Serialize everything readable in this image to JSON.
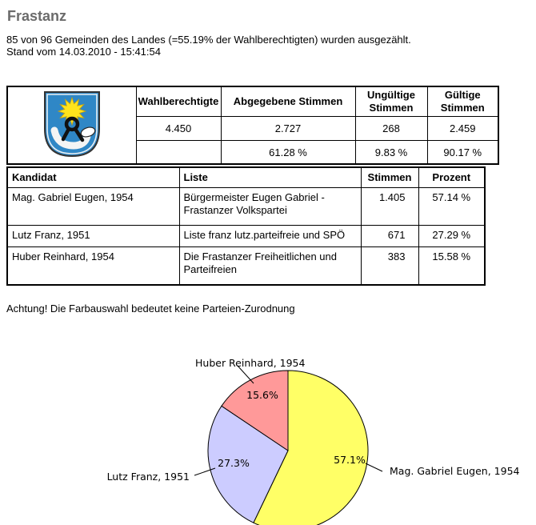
{
  "page": {
    "title": "Frastanz",
    "intro_line1": "85 von 96 Gemeinden des Landes (=55.19% der Wahlberechtigten) wurden ausgezählt.",
    "intro_line2": "Stand vom 14.03.2010 - 15:41:54",
    "note": "Achtung! Die Farbauswahl bedeutet keine Parteien-Zurodnung"
  },
  "summary_table": {
    "coat_of_arms": "frastanz-municipal-coat-of-arms",
    "headers": [
      "Wahlberechtigte",
      "Abgegebene Stimmen",
      "Ungültige Stimmen",
      "Gültige Stimmen"
    ],
    "values": [
      "4.450",
      "2.727",
      "268",
      "2.459"
    ],
    "percentages": [
      "",
      "61.28 %",
      "9.83 %",
      "90.17 %"
    ]
  },
  "candidate_table": {
    "headers": [
      "Kandidat",
      "Liste",
      "Stimmen",
      "Prozent"
    ],
    "rows": [
      {
        "kandidat": "Mag. Gabriel Eugen, 1954",
        "liste": "Bürgermeister Eugen Gabriel - Frastanzer Volkspartei",
        "stimmen": "1.405",
        "prozent": "57.14 %"
      },
      {
        "kandidat": "Lutz Franz, 1951",
        "liste": "Liste franz lutz.parteifreie und SPÖ",
        "stimmen": "671",
        "prozent": "27.29 %"
      },
      {
        "kandidat": "Huber Reinhard, 1954",
        "liste": "Die Frastanzer Freiheitlichen und Parteifreien",
        "stimmen": "383",
        "prozent": "15.58 %"
      }
    ]
  },
  "chart_data": {
    "type": "pie",
    "title": "",
    "start_angle_deg": 0,
    "direction": "clockwise",
    "outline_color": "#000000",
    "legend_position": "callout-labels",
    "slices": [
      {
        "label": "Mag. Gabriel Eugen, 1954",
        "value": 57.1,
        "percent_label": "57.1%",
        "color": "#FFFF66"
      },
      {
        "label": "Lutz Franz, 1951",
        "value": 27.3,
        "percent_label": "27.3%",
        "color": "#CCCCFF"
      },
      {
        "label": "Huber Reinhard, 1954",
        "value": 15.6,
        "percent_label": "15.6%",
        "color": "#FF9999"
      }
    ]
  }
}
